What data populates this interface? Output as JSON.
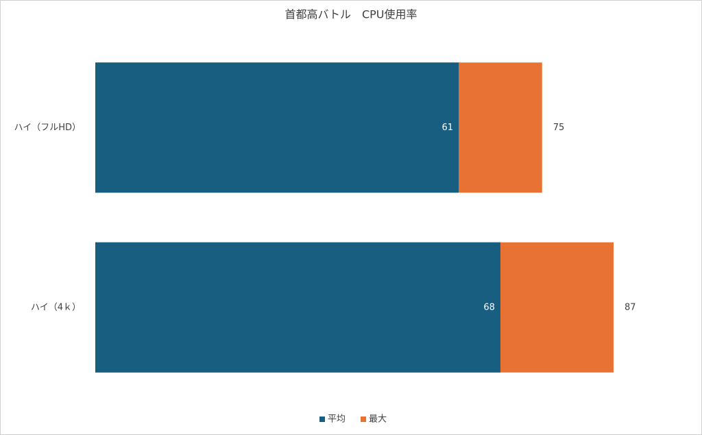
{
  "chart_data": {
    "type": "bar",
    "orientation": "horizontal",
    "title": "首都高バトル　CPU使用率",
    "categories": [
      "ハイ（フルHD）",
      "ハイ（4ｋ）"
    ],
    "series": [
      {
        "name": "平均",
        "color": "#185e80",
        "values": [
          61,
          68
        ]
      },
      {
        "name": "最大",
        "color": "#e87234",
        "values": [
          75,
          87
        ]
      }
    ],
    "xlim": [
      0,
      100
    ],
    "legend": "bottom"
  }
}
